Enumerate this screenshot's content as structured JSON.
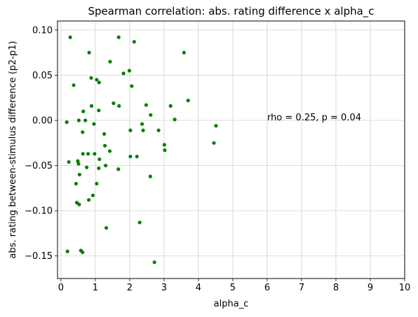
{
  "chart_data": {
    "type": "scatter",
    "title": "Spearman correlation: abs. rating difference x alpha_c",
    "xlabel": "alpha_c",
    "ylabel": "abs. rating between-stimulus difference (p2-p1)",
    "xlim": [
      -0.1,
      10
    ],
    "ylim": [
      -0.175,
      0.11
    ],
    "xticks": [
      0,
      1,
      2,
      3,
      4,
      5,
      6,
      7,
      8,
      9,
      10
    ],
    "xtick_labels": [
      "0",
      "1",
      "2",
      "3",
      "4",
      "5",
      "6",
      "7",
      "8",
      "9",
      "10"
    ],
    "yticks": [
      0.1,
      0.05,
      0.0,
      -0.05,
      -0.1,
      -0.15
    ],
    "ytick_labels": [
      "0.10",
      "0.05",
      "0.00",
      "−0.05",
      "−0.10",
      "−0.15"
    ],
    "grid": true,
    "marker_color": "#008000",
    "annotation": {
      "text": "rho = 0.25, p = 0.04",
      "x": 6.0,
      "y": 0.0
    },
    "points": [
      {
        "x": 0.27,
        "y": 0.092
      },
      {
        "x": 1.68,
        "y": 0.092
      },
      {
        "x": 2.13,
        "y": 0.087
      },
      {
        "x": 0.82,
        "y": 0.075
      },
      {
        "x": 3.58,
        "y": 0.075
      },
      {
        "x": 1.43,
        "y": 0.065
      },
      {
        "x": 1.99,
        "y": 0.055
      },
      {
        "x": 1.82,
        "y": 0.052
      },
      {
        "x": 0.88,
        "y": 0.047
      },
      {
        "x": 1.04,
        "y": 0.045
      },
      {
        "x": 1.11,
        "y": 0.042
      },
      {
        "x": 0.37,
        "y": 0.039
      },
      {
        "x": 2.06,
        "y": 0.038
      },
      {
        "x": 3.7,
        "y": 0.022
      },
      {
        "x": 1.53,
        "y": 0.019
      },
      {
        "x": 2.48,
        "y": 0.017
      },
      {
        "x": 3.19,
        "y": 0.016
      },
      {
        "x": 1.69,
        "y": 0.016
      },
      {
        "x": 0.89,
        "y": 0.016
      },
      {
        "x": 1.1,
        "y": 0.011
      },
      {
        "x": 0.65,
        "y": 0.01
      },
      {
        "x": 2.61,
        "y": 0.006
      },
      {
        "x": 3.31,
        "y": 0.001
      },
      {
        "x": 0.52,
        "y": 0.0
      },
      {
        "x": 0.71,
        "y": 0.0
      },
      {
        "x": 0.17,
        "y": -0.002
      },
      {
        "x": 0.96,
        "y": -0.004
      },
      {
        "x": 2.36,
        "y": -0.004
      },
      {
        "x": 4.51,
        "y": -0.006
      },
      {
        "x": 2.02,
        "y": -0.011
      },
      {
        "x": 2.39,
        "y": -0.011
      },
      {
        "x": 2.84,
        "y": -0.011
      },
      {
        "x": 0.63,
        "y": -0.013
      },
      {
        "x": 1.26,
        "y": -0.015
      },
      {
        "x": 4.45,
        "y": -0.025
      },
      {
        "x": 3.01,
        "y": -0.027
      },
      {
        "x": 1.28,
        "y": -0.028
      },
      {
        "x": 3.02,
        "y": -0.033
      },
      {
        "x": 1.42,
        "y": -0.034
      },
      {
        "x": 0.64,
        "y": -0.037
      },
      {
        "x": 0.79,
        "y": -0.037
      },
      {
        "x": 0.98,
        "y": -0.037
      },
      {
        "x": 2.02,
        "y": -0.04
      },
      {
        "x": 2.21,
        "y": -0.04
      },
      {
        "x": 1.12,
        "y": -0.043
      },
      {
        "x": 0.23,
        "y": -0.046
      },
      {
        "x": 0.49,
        "y": -0.045
      },
      {
        "x": 0.51,
        "y": -0.048
      },
      {
        "x": 1.3,
        "y": -0.05
      },
      {
        "x": 0.75,
        "y": -0.052
      },
      {
        "x": 1.1,
        "y": -0.053
      },
      {
        "x": 1.67,
        "y": -0.054
      },
      {
        "x": 0.54,
        "y": -0.06
      },
      {
        "x": 2.6,
        "y": -0.062
      },
      {
        "x": 1.04,
        "y": -0.07
      },
      {
        "x": 0.44,
        "y": -0.07
      },
      {
        "x": 0.93,
        "y": -0.083
      },
      {
        "x": 0.81,
        "y": -0.088
      },
      {
        "x": 0.46,
        "y": -0.091
      },
      {
        "x": 0.53,
        "y": -0.093
      },
      {
        "x": 2.29,
        "y": -0.113
      },
      {
        "x": 1.32,
        "y": -0.119
      },
      {
        "x": 0.19,
        "y": -0.145
      },
      {
        "x": 0.58,
        "y": -0.144
      },
      {
        "x": 0.63,
        "y": -0.146
      },
      {
        "x": 2.72,
        "y": -0.157
      }
    ]
  }
}
